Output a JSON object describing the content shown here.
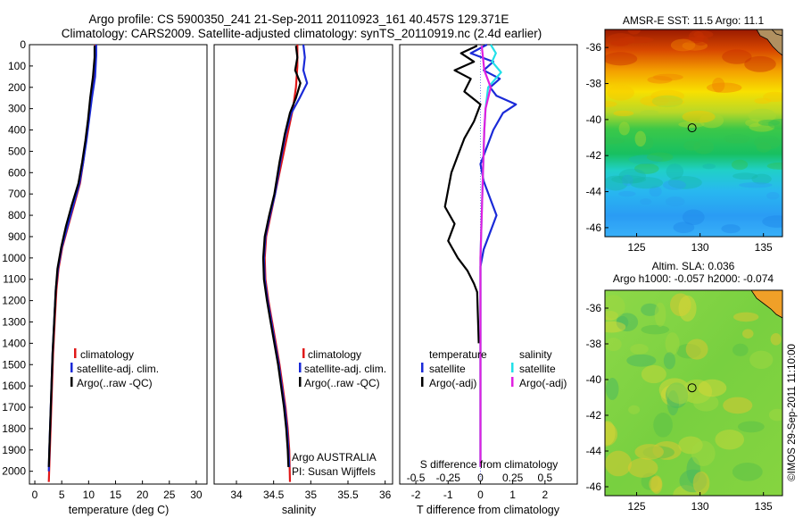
{
  "header": {
    "line1": "Argo profile: CS 5900350_241 21-Sep-2011 20110923_161 40.457S 129.371E",
    "line2": "Climatology: CARS2009. Satellite-adjusted climatology: synTS_20110919.nc (2.4d earlier)"
  },
  "colors": {
    "climatology": "#e01818",
    "satellite": "#1a2ad8",
    "argo": "#000000",
    "sal_satellite": "#22e0e8",
    "sal_argo": "#e020e0"
  },
  "depth_ticks": [
    0,
    100,
    200,
    300,
    400,
    500,
    600,
    700,
    800,
    900,
    1000,
    1100,
    1200,
    1300,
    1400,
    1500,
    1600,
    1700,
    1800,
    1900,
    2000
  ],
  "chart_data": [
    {
      "type": "line",
      "name_key": "temperature",
      "xlabel": "temperature (deg C)",
      "xlim": [
        -1,
        32
      ],
      "ylim": [
        0,
        2060
      ],
      "x_ticks": [
        0,
        5,
        10,
        15,
        20,
        25,
        30
      ],
      "legend": [
        "climatology",
        "satellite-adj. clim.",
        "Argo(..raw -QC)"
      ],
      "legend_position": "lower-center",
      "series": [
        {
          "role": "climatology",
          "points": [
            [
              11.2,
              0
            ],
            [
              11.2,
              50
            ],
            [
              11.0,
              150
            ],
            [
              10.5,
              250
            ],
            [
              10.0,
              350
            ],
            [
              9.5,
              450
            ],
            [
              9.0,
              550
            ],
            [
              8.4,
              650
            ],
            [
              7.3,
              750
            ],
            [
              6.2,
              850
            ],
            [
              5.1,
              950
            ],
            [
              4.4,
              1050
            ],
            [
              4.0,
              1150
            ],
            [
              3.7,
              1300
            ],
            [
              3.4,
              1450
            ],
            [
              3.2,
              1600
            ],
            [
              3.0,
              1750
            ],
            [
              2.8,
              1900
            ],
            [
              2.6,
              2050
            ]
          ]
        },
        {
          "role": "satellite",
          "points": [
            [
              11.4,
              0
            ],
            [
              11.4,
              50
            ],
            [
              11.2,
              150
            ],
            [
              10.6,
              250
            ],
            [
              10.1,
              350
            ],
            [
              9.6,
              450
            ],
            [
              9.0,
              550
            ],
            [
              8.3,
              650
            ],
            [
              7.2,
              750
            ],
            [
              6.1,
              850
            ],
            [
              5.0,
              950
            ],
            [
              4.3,
              1050
            ],
            [
              3.9,
              1150
            ],
            [
              3.6,
              1300
            ],
            [
              3.3,
              1450
            ],
            [
              3.1,
              1600
            ],
            [
              2.9,
              1750
            ],
            [
              2.7,
              1900
            ],
            [
              2.6,
              2000
            ]
          ]
        },
        {
          "role": "argo",
          "points": [
            [
              11.1,
              5
            ],
            [
              11.1,
              60
            ],
            [
              10.8,
              150
            ],
            [
              10.3,
              250
            ],
            [
              9.9,
              350
            ],
            [
              9.4,
              450
            ],
            [
              8.8,
              550
            ],
            [
              8.1,
              650
            ],
            [
              6.9,
              750
            ],
            [
              5.8,
              850
            ],
            [
              4.9,
              950
            ],
            [
              4.2,
              1050
            ],
            [
              3.9,
              1150
            ],
            [
              3.6,
              1300
            ],
            [
              3.3,
              1450
            ],
            [
              3.1,
              1600
            ],
            [
              2.9,
              1750
            ],
            [
              2.7,
              1900
            ],
            [
              2.6,
              1980
            ]
          ]
        }
      ]
    },
    {
      "type": "line",
      "name_key": "salinity",
      "xlabel": "salinity",
      "xlim": [
        33.7,
        36.1
      ],
      "ylim": [
        0,
        2060
      ],
      "x_ticks": [
        34,
        34.5,
        35,
        35.5,
        36
      ],
      "x_tick_labels": [
        "34",
        "34.5",
        "35",
        "35.5",
        "36"
      ],
      "legend": [
        "climatology",
        "satellite-adj. clim.",
        "Argo(..raw -QC)"
      ],
      "legend_position": "lower-right",
      "annotation": [
        "Argo AUSTRALIA",
        "PI: Susan Wijffels"
      ],
      "series": [
        {
          "role": "climatology",
          "points": [
            [
              34.82,
              0
            ],
            [
              34.82,
              100
            ],
            [
              34.8,
              200
            ],
            [
              34.76,
              300
            ],
            [
              34.7,
              400
            ],
            [
              34.64,
              500
            ],
            [
              34.58,
              600
            ],
            [
              34.52,
              700
            ],
            [
              34.46,
              800
            ],
            [
              34.4,
              900
            ],
            [
              34.38,
              1000
            ],
            [
              34.39,
              1100
            ],
            [
              34.43,
              1200
            ],
            [
              34.48,
              1300
            ],
            [
              34.53,
              1400
            ],
            [
              34.58,
              1500
            ],
            [
              34.62,
              1600
            ],
            [
              34.66,
              1700
            ],
            [
              34.69,
              1800
            ],
            [
              34.71,
              1900
            ],
            [
              34.72,
              2050
            ]
          ]
        },
        {
          "role": "satellite",
          "points": [
            [
              34.9,
              0
            ],
            [
              34.92,
              60
            ],
            [
              34.9,
              120
            ],
            [
              34.95,
              180
            ],
            [
              34.85,
              250
            ],
            [
              34.74,
              320
            ],
            [
              34.66,
              420
            ],
            [
              34.59,
              550
            ],
            [
              34.52,
              700
            ],
            [
              34.45,
              800
            ],
            [
              34.39,
              900
            ],
            [
              34.37,
              1000
            ],
            [
              34.38,
              1100
            ],
            [
              34.42,
              1200
            ],
            [
              34.47,
              1300
            ],
            [
              34.52,
              1400
            ],
            [
              34.57,
              1500
            ],
            [
              34.61,
              1600
            ],
            [
              34.65,
              1700
            ],
            [
              34.68,
              1800
            ],
            [
              34.7,
              1900
            ],
            [
              34.71,
              1980
            ]
          ]
        },
        {
          "role": "argo",
          "points": [
            [
              34.8,
              5
            ],
            [
              34.82,
              60
            ],
            [
              34.79,
              120
            ],
            [
              34.86,
              180
            ],
            [
              34.8,
              250
            ],
            [
              34.72,
              320
            ],
            [
              34.65,
              420
            ],
            [
              34.58,
              550
            ],
            [
              34.51,
              700
            ],
            [
              34.44,
              800
            ],
            [
              34.38,
              900
            ],
            [
              34.36,
              1000
            ],
            [
              34.37,
              1100
            ],
            [
              34.41,
              1200
            ],
            [
              34.46,
              1300
            ],
            [
              34.51,
              1400
            ],
            [
              34.56,
              1500
            ],
            [
              34.6,
              1600
            ],
            [
              34.64,
              1700
            ],
            [
              34.67,
              1800
            ],
            [
              34.69,
              1900
            ],
            [
              34.7,
              1980
            ]
          ]
        }
      ]
    },
    {
      "type": "line",
      "name_key": "difference",
      "xlabel": "T difference from climatology",
      "xlabel_top": "S difference from climatology",
      "xlim": [
        -2.5,
        3
      ],
      "ylim": [
        0,
        2060
      ],
      "x_ticks": [
        -2,
        -1,
        0,
        1,
        2
      ],
      "x_ticks_top": [
        -0.5,
        -0.25,
        0,
        0.25,
        0.5
      ],
      "x_ticks_top_labels": [
        "-0.5",
        "-0.25",
        "0",
        "0.25",
        "0.5"
      ],
      "legend_left_title": "temperature",
      "legend_right_title": "salinity",
      "legend_left": [
        "satellite",
        "Argo(-adj)"
      ],
      "legend_right": [
        "satellite",
        "Argo(-adj)"
      ],
      "series": [
        {
          "role": "temp_satellite",
          "points": [
            [
              0.2,
              0
            ],
            [
              -0.3,
              40
            ],
            [
              0.4,
              80
            ],
            [
              0.1,
              120
            ],
            [
              0.6,
              160
            ],
            [
              0.3,
              200
            ],
            [
              0.5,
              240
            ],
            [
              1.1,
              280
            ],
            [
              0.7,
              320
            ],
            [
              0.4,
              400
            ],
            [
              0.2,
              480
            ],
            [
              0.0,
              560
            ],
            [
              0.1,
              640
            ],
            [
              0.3,
              720
            ],
            [
              0.5,
              800
            ],
            [
              0.3,
              880
            ],
            [
              0.1,
              960
            ],
            [
              0.0,
              1040
            ],
            [
              0.0,
              1200
            ],
            [
              0.0,
              1500
            ],
            [
              0.0,
              1800
            ],
            [
              0.0,
              1980
            ]
          ]
        },
        {
          "role": "temp_argo",
          "points": [
            [
              -0.1,
              5
            ],
            [
              -0.6,
              40
            ],
            [
              -0.2,
              80
            ],
            [
              -0.8,
              120
            ],
            [
              -0.3,
              160
            ],
            [
              -0.5,
              220
            ],
            [
              0.0,
              280
            ],
            [
              -0.2,
              360
            ],
            [
              -0.5,
              440
            ],
            [
              -0.7,
              520
            ],
            [
              -0.9,
              600
            ],
            [
              -1.0,
              680
            ],
            [
              -1.1,
              760
            ],
            [
              -0.8,
              840
            ],
            [
              -1.0,
              920
            ],
            [
              -0.7,
              1000
            ],
            [
              -0.4,
              1060
            ],
            [
              -0.2,
              1120
            ],
            [
              -0.1,
              1160
            ],
            [
              -0.05,
              1400
            ]
          ]
        },
        {
          "role": "sal_satellite",
          "points": [
            [
              0.08,
              0
            ],
            [
              0.12,
              40
            ],
            [
              0.09,
              80
            ],
            [
              0.16,
              130
            ],
            [
              0.06,
              200
            ],
            [
              0.04,
              300
            ],
            [
              0.03,
              400
            ],
            [
              0.02,
              600
            ],
            [
              0.01,
              800
            ],
            [
              0.0,
              1000
            ],
            [
              0.0,
              1200
            ],
            [
              0.0,
              1500
            ],
            [
              0.0,
              1800
            ],
            [
              0.0,
              1980
            ]
          ]
        },
        {
          "role": "sal_argo",
          "points": [
            [
              0.01,
              5
            ],
            [
              0.02,
              60
            ],
            [
              0.03,
              120
            ],
            [
              0.08,
              200
            ],
            [
              0.04,
              300
            ],
            [
              0.03,
              400
            ],
            [
              0.02,
              600
            ],
            [
              0.01,
              800
            ],
            [
              0.0,
              1000
            ],
            [
              0.0,
              1200
            ],
            [
              0.0,
              1500
            ],
            [
              0.0,
              1800
            ],
            [
              0.0,
              1980
            ]
          ]
        }
      ]
    },
    {
      "type": "heatmap",
      "name_key": "sst_map",
      "title": "AMSR-E SST: 11.5  Argo: 11.1",
      "xlim": [
        122.5,
        136.5
      ],
      "ylim": [
        -46.5,
        -35.0
      ],
      "x_ticks": [
        125,
        130,
        135
      ],
      "y_ticks": [
        -36,
        -38,
        -40,
        -42,
        -44,
        -46
      ],
      "marker": [
        129.37,
        -40.46
      ]
    },
    {
      "type": "heatmap",
      "name_key": "sla_map",
      "title": "Altim. SLA: 0.036",
      "subtitle": "Argo h1000: -0.057  h2000: -0.074",
      "xlim": [
        122.5,
        136.5
      ],
      "ylim": [
        -46.5,
        -35.0
      ],
      "x_ticks": [
        125,
        130,
        135
      ],
      "y_ticks": [
        -36,
        -38,
        -40,
        -42,
        -44,
        -46
      ],
      "marker": [
        129.37,
        -40.46
      ]
    }
  ],
  "side_note": "©IMOS 29-Sep-2011 11:10:00"
}
